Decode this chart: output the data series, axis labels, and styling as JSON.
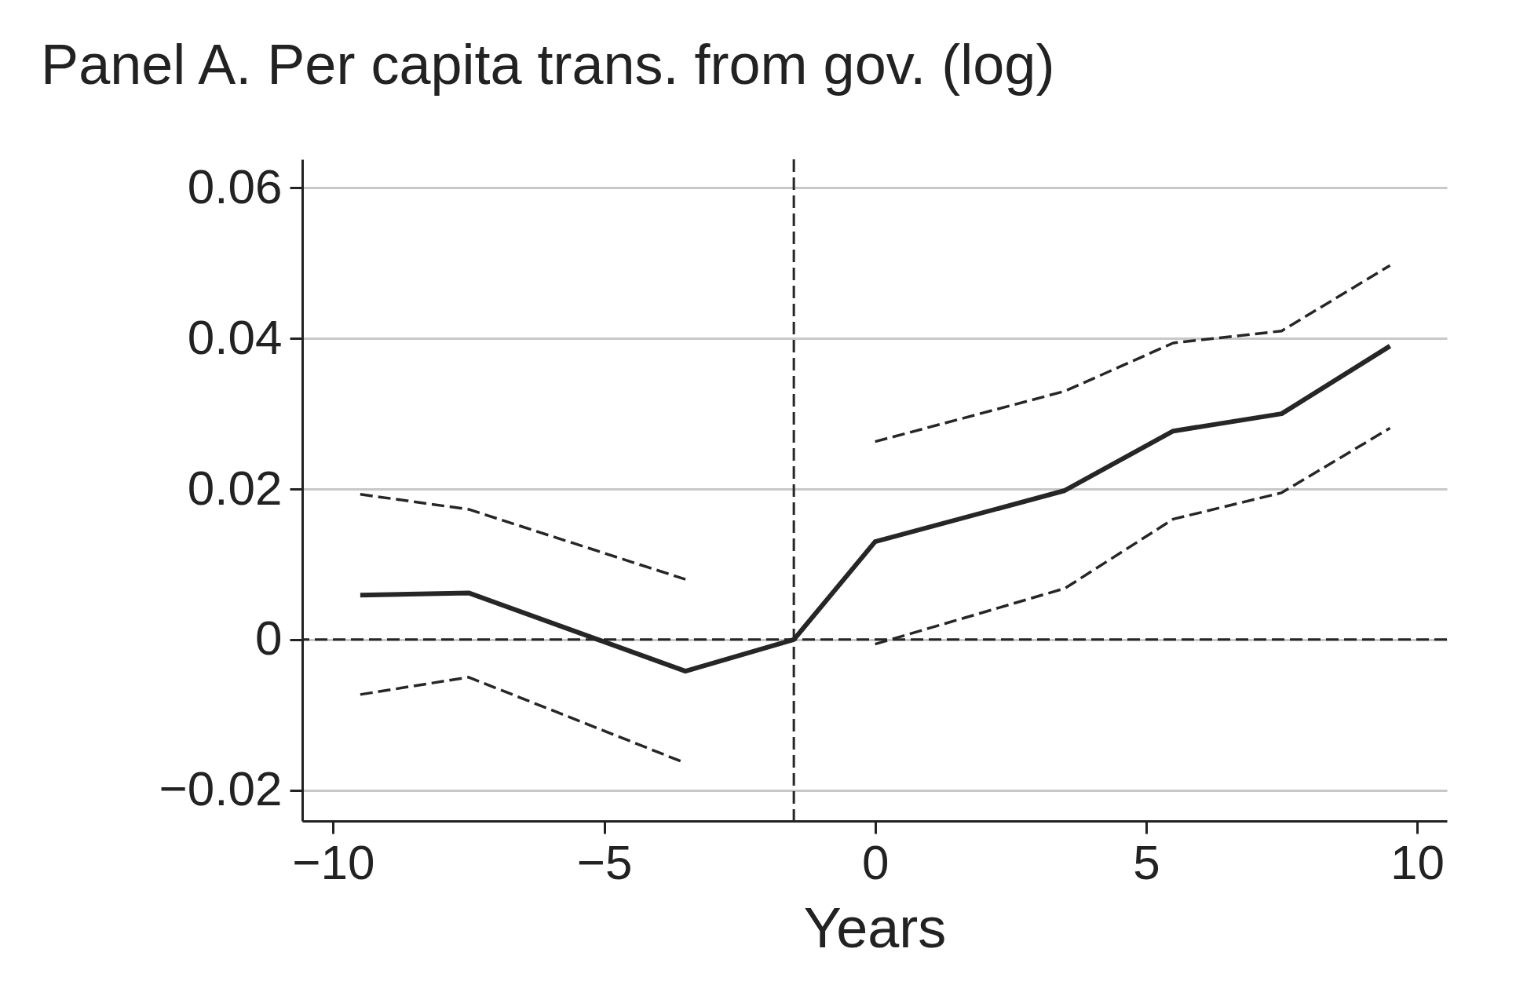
{
  "chart_data": {
    "type": "line",
    "title": "Panel A. Per capita trans. from gov. (log)",
    "xlabel": "Years",
    "x": [
      -9.5,
      -7.5,
      -3.5,
      -1.5,
      0,
      3.5,
      5.5,
      7.5,
      9.5
    ],
    "series": [
      {
        "color": "#262626",
        "line_style": "solid",
        "values": [
          0.0059,
          0.0062,
          -0.0042,
          0,
          0.013,
          0.0198,
          0.0277,
          0.03,
          0.039
        ]
      },
      {
        "color": "#262626",
        "line_style": "dashed",
        "values": [
          0.0193,
          0.0173,
          0.008,
          null,
          0.0263,
          0.033,
          0.0394,
          0.041,
          0.0497
        ]
      },
      {
        "color": "#262626",
        "line_style": "dashed",
        "values": [
          -0.0073,
          -0.005,
          -0.0164,
          null,
          -0.0006,
          0.0068,
          0.016,
          0.0195,
          0.0281
        ]
      }
    ],
    "xlim": [
      -10.57,
      10.55
    ],
    "xticks": [
      {
        "value": -10,
        "label": "−10"
      },
      {
        "value": -5,
        "label": "−5"
      },
      0,
      5,
      10
    ],
    "ylim": [
      -0.0241,
      0.0638
    ],
    "yticks": [
      {
        "value": -0.02,
        "label": "−0.02"
      },
      0,
      0.02,
      0.04,
      0.06
    ],
    "grid": "y",
    "marker": "none",
    "ref_lines": [
      {
        "axis": "x",
        "value": -1.5,
        "color": "#262626",
        "line_style": "dashed"
      },
      {
        "axis": "y",
        "value": 0,
        "color": "#262626",
        "line_style": "dashed"
      }
    ]
  }
}
